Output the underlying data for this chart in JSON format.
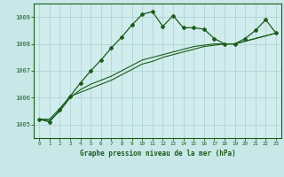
{
  "title": "Graphe pression niveau de la mer (hPa)",
  "bg_color": "#c8e8e8",
  "plot_bg_color": "#d0ecec",
  "line_color": "#1a5c1a",
  "grid_color": "#b0d4d4",
  "border_color": "#1a5c1a",
  "hours": [
    0,
    1,
    2,
    3,
    4,
    5,
    6,
    7,
    8,
    9,
    10,
    11,
    12,
    13,
    14,
    15,
    16,
    17,
    18,
    19,
    20,
    21,
    22,
    23
  ],
  "pressure_main": [
    1005.2,
    1005.1,
    1005.55,
    1006.05,
    1006.55,
    1007.0,
    1007.4,
    1007.85,
    1008.25,
    1008.7,
    1009.1,
    1009.2,
    1008.65,
    1009.05,
    1008.6,
    1008.6,
    1008.55,
    1008.2,
    1008.0,
    1008.0,
    1008.2,
    1008.5,
    1008.9,
    1008.4
  ],
  "pressure_trend_a": [
    1005.2,
    1005.15,
    1005.5,
    1006.0,
    1006.3,
    1006.5,
    1006.65,
    1006.8,
    1007.0,
    1007.2,
    1007.4,
    1007.5,
    1007.6,
    1007.7,
    1007.8,
    1007.9,
    1007.95,
    1008.0,
    1008.0,
    1008.0,
    1008.1,
    1008.2,
    1008.3,
    1008.4
  ],
  "pressure_trend_b": [
    1005.2,
    1005.2,
    1005.6,
    1006.05,
    1006.2,
    1006.35,
    1006.5,
    1006.65,
    1006.85,
    1007.05,
    1007.25,
    1007.35,
    1007.5,
    1007.6,
    1007.7,
    1007.8,
    1007.9,
    1007.95,
    1008.0,
    1008.0,
    1008.1,
    1008.2,
    1008.3,
    1008.4
  ],
  "ylim": [
    1004.5,
    1009.5
  ],
  "yticks": [
    1005,
    1006,
    1007,
    1008,
    1009
  ],
  "xticks": [
    0,
    1,
    2,
    3,
    4,
    5,
    6,
    7,
    8,
    9,
    10,
    11,
    12,
    13,
    14,
    15,
    16,
    17,
    18,
    19,
    20,
    21,
    22,
    23
  ]
}
